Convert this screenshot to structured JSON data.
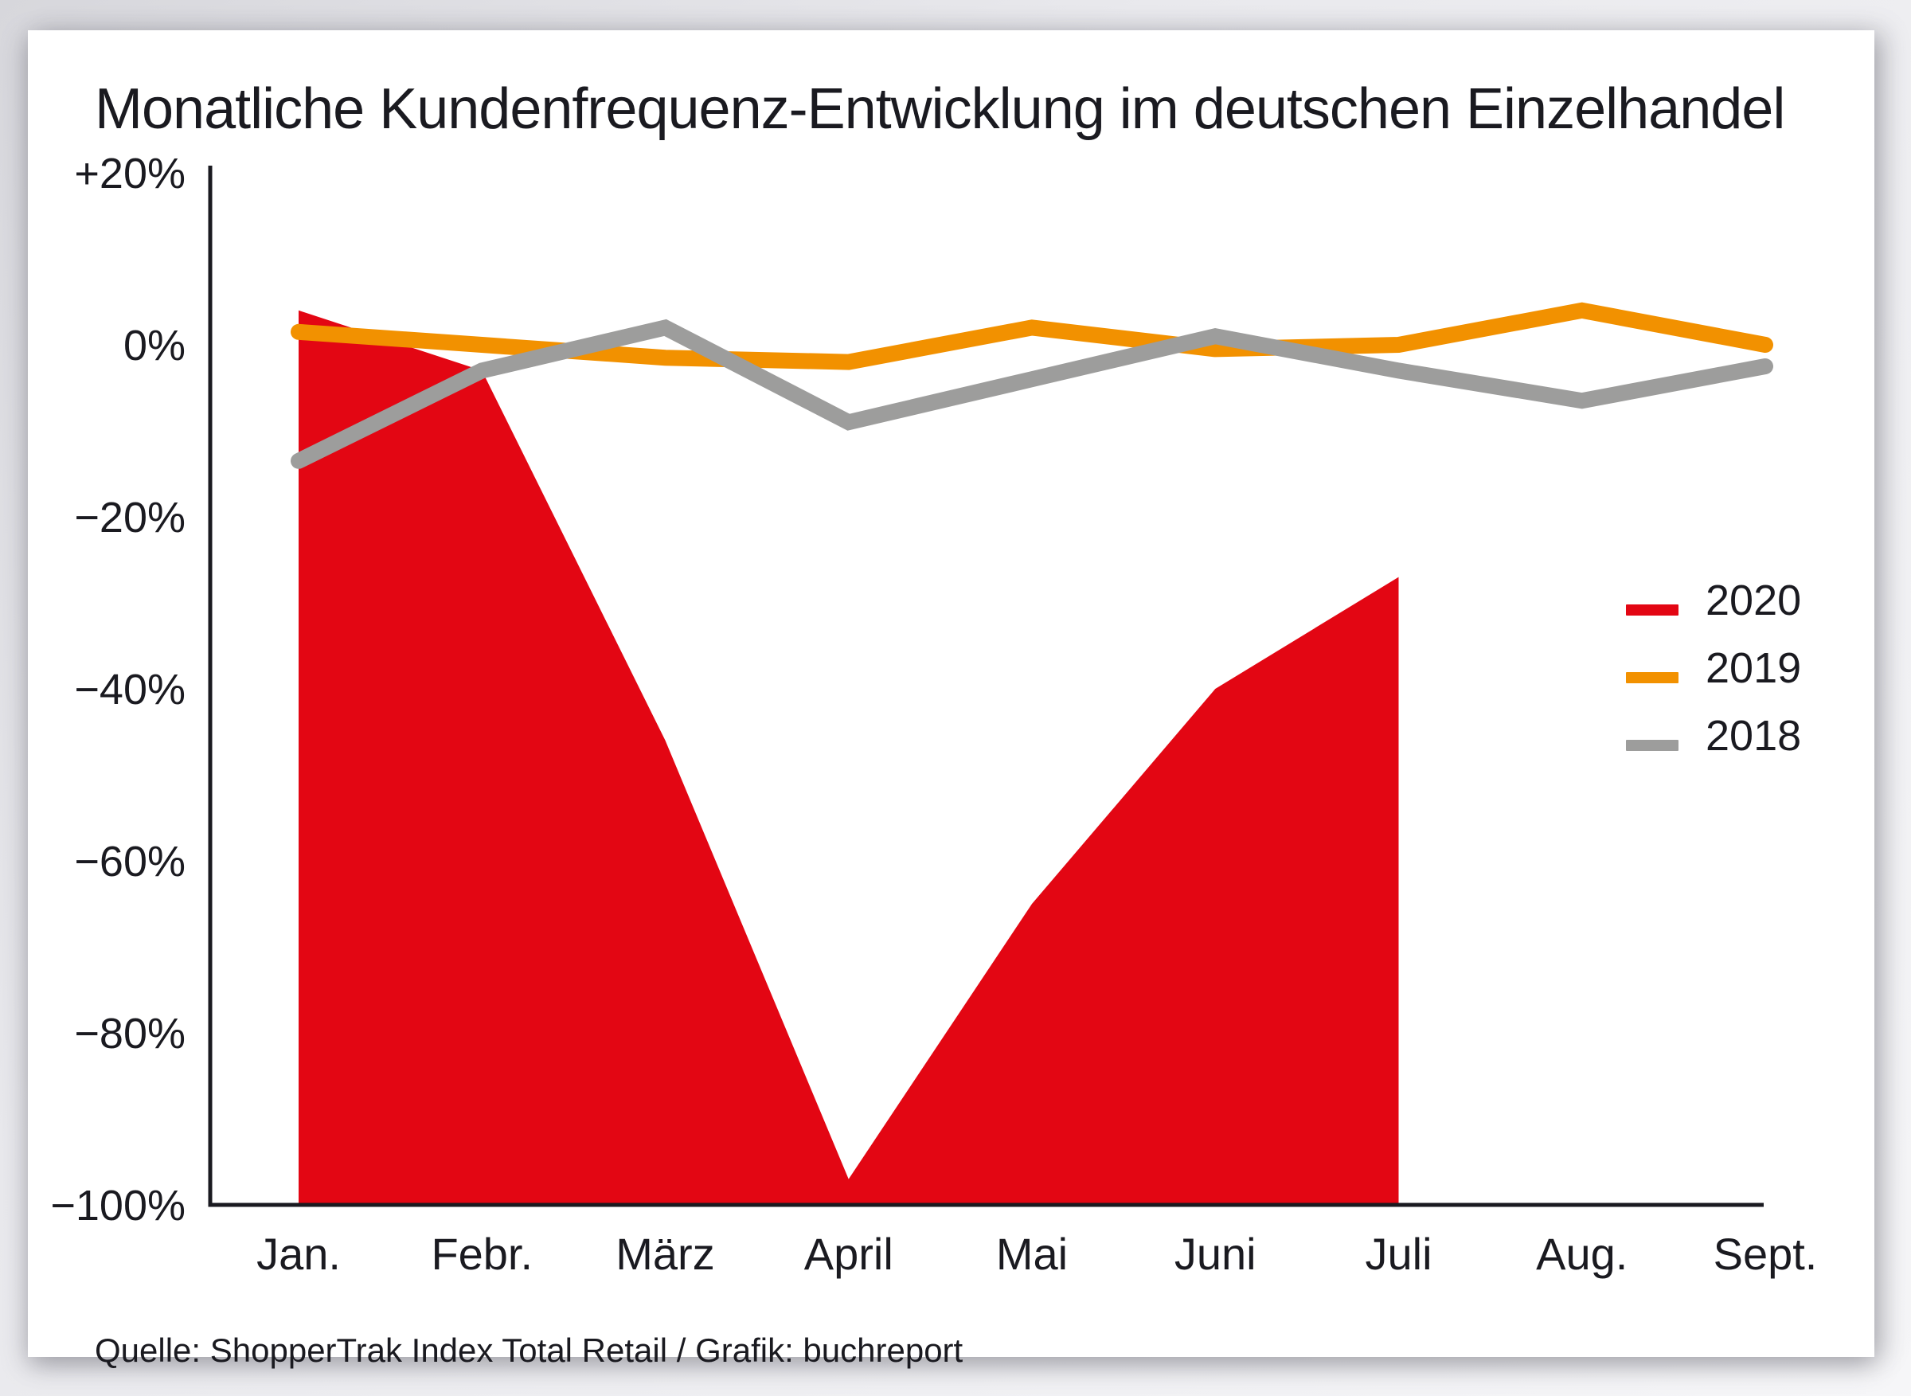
{
  "title": "Monatliche Kundenfrequenz-Entwicklung im deutschen Einzelhandel",
  "source": "Quelle: ShopperTrak Index Total Retail / Grafik: buchreport",
  "legend": {
    "items": [
      {
        "label": "2020",
        "color": "#e30613"
      },
      {
        "label": "2019",
        "color": "#f29100"
      },
      {
        "label": "2018",
        "color": "#9d9d9c"
      }
    ]
  },
  "colors": {
    "axis": "#1a1a20",
    "text": "#1a1a20",
    "red_2020": "#e30613",
    "orange_2019": "#f29100",
    "gray_2018": "#9d9d9c"
  },
  "chart_data": {
    "type": "area",
    "title": "Monatliche Kundenfrequenz-Entwicklung im deutschen Einzelhandel",
    "categories": [
      "Jan.",
      "Febr.",
      "März",
      "April",
      "Mai",
      "Juni",
      "Juli",
      "Aug.",
      "Sept."
    ],
    "series": [
      {
        "name": "2020",
        "style": "area",
        "color": "#e30613",
        "values": [
          4,
          -3,
          -46,
          -97,
          -65,
          -40,
          -27,
          null,
          null
        ]
      },
      {
        "name": "2019",
        "style": "line",
        "color": "#f29100",
        "values": [
          1.5,
          0,
          -1.5,
          -2,
          2,
          -0.5,
          0,
          4,
          0
        ]
      },
      {
        "name": "2018",
        "style": "line",
        "color": "#9d9d9c",
        "values": [
          -13.5,
          -3,
          2,
          -9,
          -4,
          1,
          -3,
          -6.5,
          -2.5
        ]
      }
    ],
    "xlabel": "",
    "ylabel": "",
    "ylim": [
      -100,
      20
    ],
    "y_ticks": [
      {
        "v": 20,
        "label": "+20%"
      },
      {
        "v": 0,
        "label": "0%"
      },
      {
        "v": -20,
        "label": "−20%"
      },
      {
        "v": -40,
        "label": "−40%"
      },
      {
        "v": -60,
        "label": "−60%"
      },
      {
        "v": -80,
        "label": "−80%"
      },
      {
        "v": -100,
        "label": "−100%"
      }
    ],
    "grid": false,
    "legend_position": "right-middle",
    "values_unit": "%"
  }
}
